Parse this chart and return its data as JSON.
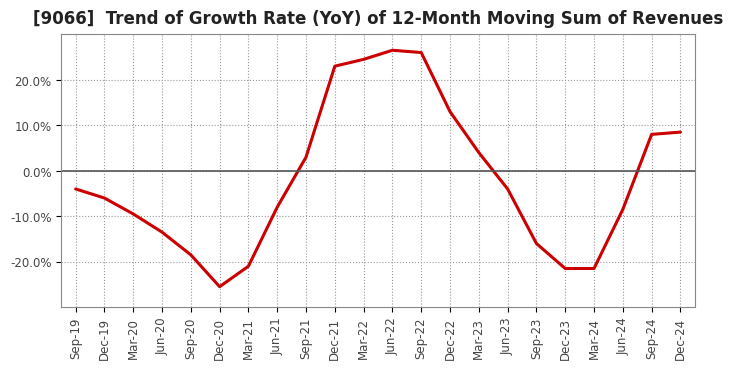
{
  "title": "[9066]  Trend of Growth Rate (YoY) of 12-Month Moving Sum of Revenues",
  "x_labels": [
    "Sep-19",
    "Dec-19",
    "Mar-20",
    "Jun-20",
    "Sep-20",
    "Dec-20",
    "Mar-21",
    "Jun-21",
    "Sep-21",
    "Dec-21",
    "Mar-22",
    "Jun-22",
    "Sep-22",
    "Dec-22",
    "Mar-23",
    "Jun-23",
    "Sep-23",
    "Dec-23",
    "Mar-24",
    "Jun-24",
    "Sep-24",
    "Dec-24"
  ],
  "y_values": [
    -4.0,
    -6.0,
    -9.5,
    -13.5,
    -18.5,
    -25.5,
    -21.0,
    -8.0,
    3.0,
    23.0,
    24.5,
    26.5,
    26.0,
    13.0,
    4.0,
    -4.0,
    -16.0,
    -21.5,
    -21.5,
    -8.5,
    8.0,
    8.5
  ],
  "line_color": "#cc0000",
  "line_width": 2.2,
  "ylim_min": -30,
  "ylim_max": 30,
  "yticks": [
    -20.0,
    -10.0,
    0.0,
    10.0,
    20.0
  ],
  "ytick_labels": [
    "-20.0%",
    "-10.0%",
    "0.0%",
    "10.0%",
    "20.0%"
  ],
  "grid_color": "#999999",
  "background_color": "#ffffff",
  "title_fontsize": 12,
  "axis_label_fontsize": 8.5,
  "spine_color": "#888888"
}
